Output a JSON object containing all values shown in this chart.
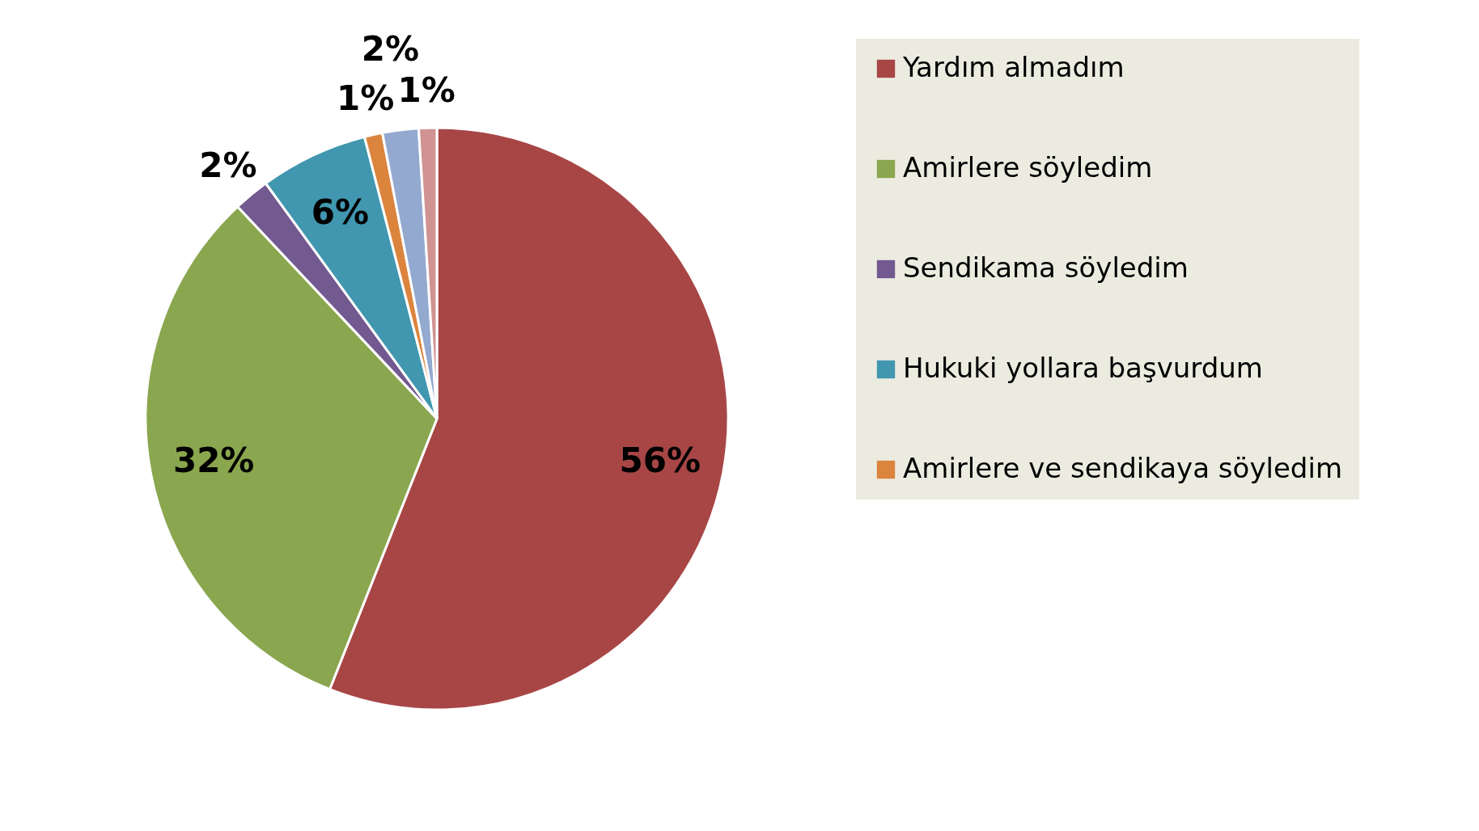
{
  "chart_data": {
    "type": "pie",
    "categories": [
      "Yardım almadım",
      "Amirlere söyledim",
      "Sendikama söyledim",
      "Hukuki yollara başvurdum",
      "Amirlere ve sendikaya söyledim",
      null,
      null
    ],
    "values": [
      56,
      32,
      2,
      6,
      1,
      2,
      1
    ],
    "colors": [
      "#a84646",
      "#8aa64e",
      "#72598f",
      "#4197af",
      "#db843d",
      "#93a9d0",
      "#d09392"
    ],
    "value_labels": [
      "56%",
      "32%",
      "2%",
      "6%",
      "1%",
      "2%",
      "1%"
    ],
    "legend": "right"
  }
}
